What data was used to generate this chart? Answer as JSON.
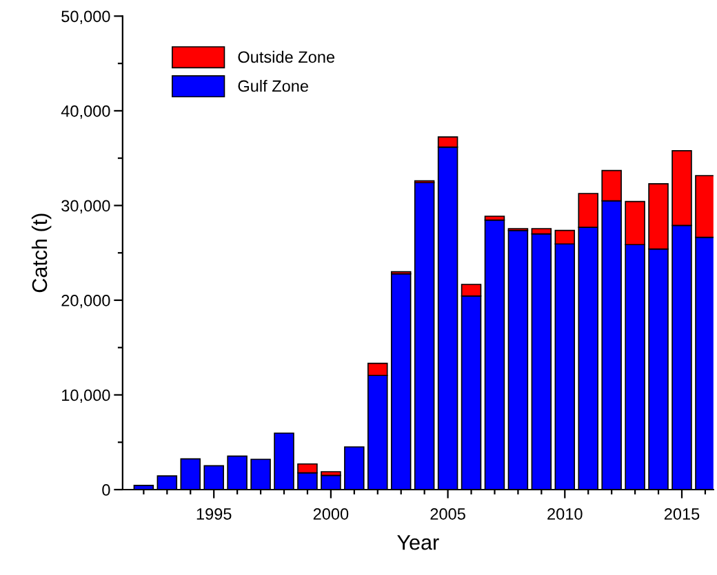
{
  "chart_data": {
    "type": "bar",
    "stacked": true,
    "xlabel": "Year",
    "ylabel": "Catch (t)",
    "x": [
      1992,
      1993,
      1994,
      1995,
      1996,
      1997,
      1998,
      1999,
      2000,
      2001,
      2002,
      2003,
      2004,
      2005,
      2006,
      2007,
      2008,
      2009,
      2010,
      2011,
      2012,
      2013,
      2014,
      2015,
      2016
    ],
    "series": [
      {
        "name": "Gulf Zone",
        "color": "#0000ff",
        "values": [
          440,
          1450,
          3250,
          2520,
          3540,
          3200,
          5960,
          1770,
          1500,
          4510,
          12050,
          22790,
          32410,
          36170,
          20440,
          28460,
          27370,
          27000,
          25940,
          27690,
          30500,
          25870,
          25400,
          27900,
          26640
        ]
      },
      {
        "name": "Outside Zone",
        "color": "#ff0000",
        "values": [
          0,
          0,
          0,
          0,
          0,
          0,
          0,
          940,
          390,
          0,
          1280,
          210,
          190,
          1070,
          1230,
          410,
          190,
          560,
          1430,
          3580,
          3200,
          4550,
          6890,
          7880,
          6520
        ]
      }
    ],
    "xlim": [
      1991.1,
      2016.35
    ],
    "xticks": [
      {
        "value": 1992,
        "label": null
      },
      {
        "value": 1993,
        "label": null
      },
      {
        "value": 1994,
        "label": null
      },
      1995,
      {
        "value": 1996,
        "label": null
      },
      {
        "value": 1997,
        "label": null
      },
      {
        "value": 1998,
        "label": null
      },
      {
        "value": 1999,
        "label": null
      },
      2000,
      {
        "value": 2001,
        "label": null
      },
      {
        "value": 2002,
        "label": null
      },
      {
        "value": 2003,
        "label": null
      },
      {
        "value": 2004,
        "label": null
      },
      2005,
      {
        "value": 2006,
        "label": null
      },
      {
        "value": 2007,
        "label": null
      },
      {
        "value": 2008,
        "label": null
      },
      {
        "value": 2009,
        "label": null
      },
      2010,
      {
        "value": 2011,
        "label": null
      },
      {
        "value": 2012,
        "label": null
      },
      {
        "value": 2013,
        "label": null
      },
      {
        "value": 2014,
        "label": null
      },
      2015,
      {
        "value": 2016,
        "label": null
      }
    ],
    "ylim": [
      0,
      50000
    ],
    "yticks": [
      {
        "value": 0,
        "label": "0"
      },
      {
        "value": 5000,
        "label": null
      },
      {
        "value": 10000,
        "label": "10,000"
      },
      {
        "value": 15000,
        "label": null
      },
      {
        "value": 20000,
        "label": "20,000"
      },
      {
        "value": 25000,
        "label": null
      },
      {
        "value": 30000,
        "label": "30,000"
      },
      {
        "value": 35000,
        "label": null
      },
      {
        "value": 40000,
        "label": "40,000"
      },
      {
        "value": 45000,
        "label": null
      },
      {
        "value": 50000,
        "label": "50,000"
      }
    ],
    "grid": false,
    "legend": "top left"
  }
}
